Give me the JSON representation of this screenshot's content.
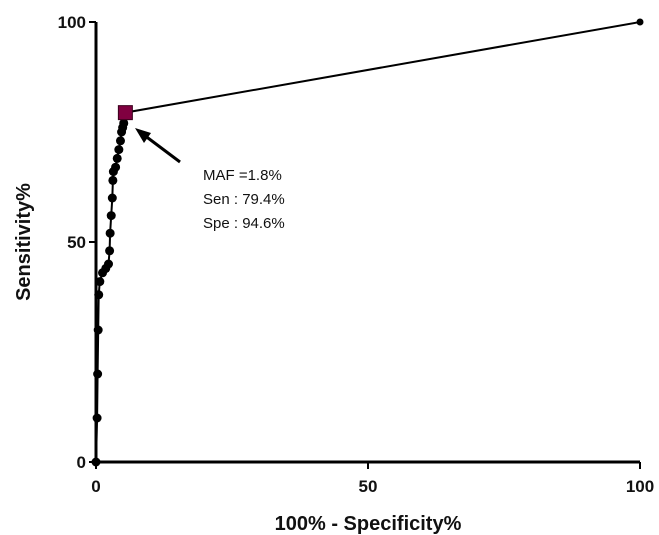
{
  "chart_data": {
    "type": "line",
    "title": "",
    "xlabel": "100% - Specificity%",
    "ylabel": "Sensitivity%",
    "xlim": [
      0,
      100
    ],
    "ylim": [
      0,
      100
    ],
    "x_ticks": [
      0,
      50,
      100
    ],
    "y_ticks": [
      0,
      50,
      100
    ],
    "grid": false,
    "series": [
      {
        "points": [
          [
            0,
            0
          ],
          [
            0.2,
            10
          ],
          [
            0.3,
            20
          ],
          [
            0.4,
            30
          ],
          [
            0.5,
            38
          ],
          [
            0.7,
            41
          ],
          [
            1.2,
            43
          ],
          [
            1.8,
            44
          ],
          [
            2.3,
            45
          ],
          [
            2.5,
            48
          ],
          [
            2.6,
            52
          ],
          [
            2.8,
            56
          ],
          [
            3.0,
            60
          ],
          [
            3.1,
            64
          ],
          [
            3.2,
            66
          ],
          [
            3.6,
            67
          ],
          [
            3.9,
            69
          ],
          [
            4.2,
            71
          ],
          [
            4.5,
            73
          ],
          [
            4.7,
            75
          ],
          [
            4.9,
            76
          ],
          [
            5.1,
            77
          ],
          [
            5.3,
            78.5
          ],
          [
            5.4,
            79.4
          ],
          [
            100,
            100
          ]
        ],
        "color": "#000000"
      }
    ],
    "highlight": {
      "x": 5.4,
      "y": 79.4,
      "color": "#800040"
    },
    "annotations": [
      "MAF =1.8%",
      "Sen : 79.4%",
      "Spe : 94.6%"
    ]
  }
}
